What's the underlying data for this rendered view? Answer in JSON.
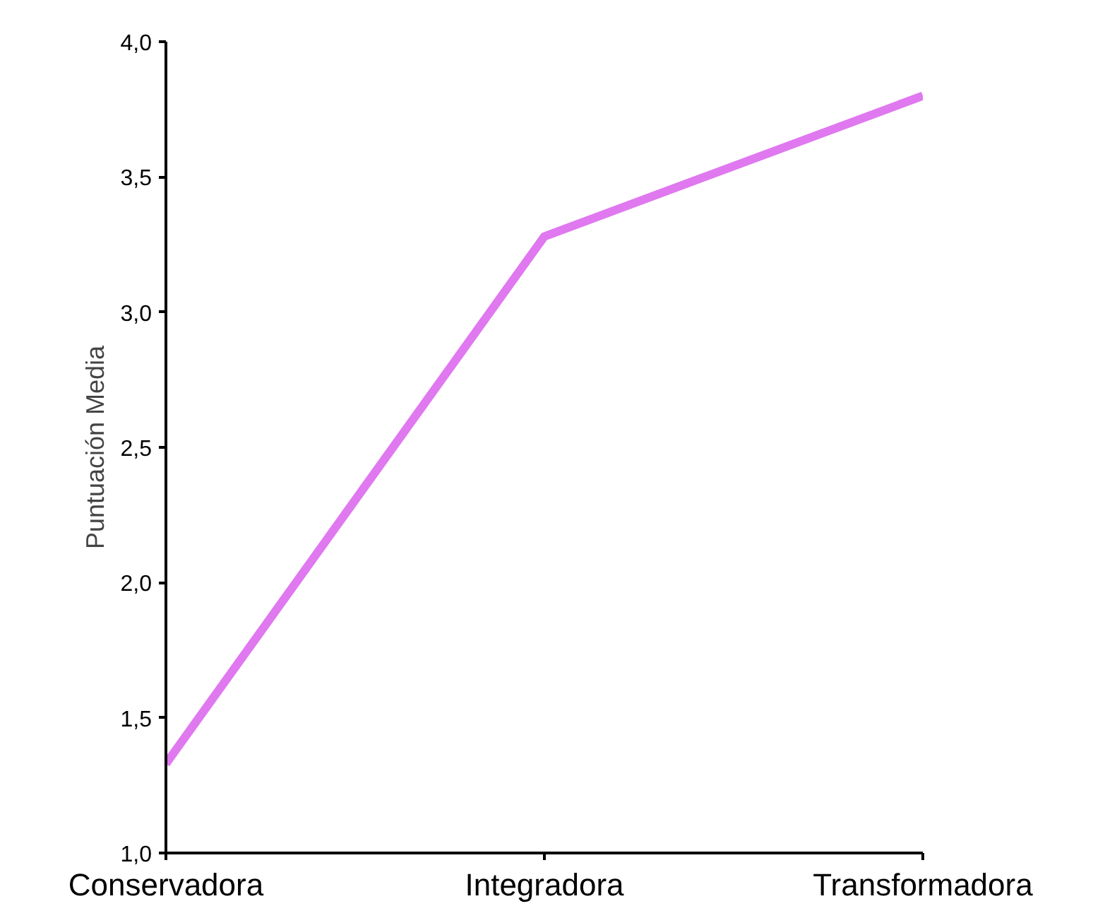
{
  "chart_data": {
    "type": "line",
    "ylabel": "Puntuación Media",
    "categories": [
      "Conservadora",
      "Integradora",
      "Transformadora"
    ],
    "series": [
      {
        "color": "#e078f0",
        "values": [
          1.33,
          3.28,
          3.8
        ]
      }
    ],
    "ylim": [
      1.0,
      4.0
    ],
    "yticks": [
      {
        "value": 1.0,
        "label": "1,0"
      },
      {
        "value": 1.5,
        "label": "1,5"
      },
      {
        "value": 2.0,
        "label": "2,0"
      },
      {
        "value": 2.5,
        "label": "2,5"
      },
      {
        "value": 3.0,
        "label": "3,0"
      },
      {
        "value": 3.5,
        "label": "3,5"
      },
      {
        "value": 4.0,
        "label": "4,0"
      }
    ],
    "grid": false,
    "marker": "none",
    "line_style": "solid"
  }
}
